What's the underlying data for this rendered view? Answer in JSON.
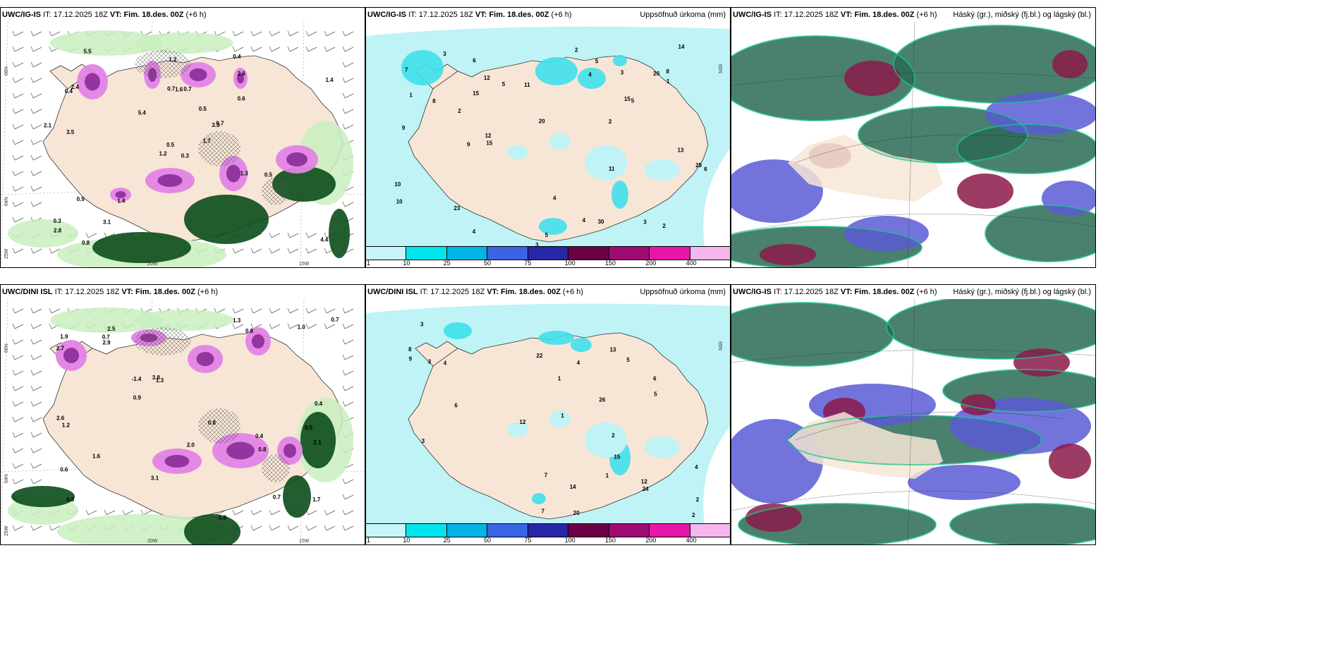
{
  "panels": [
    {
      "id": "p1",
      "model": "UWC/IG-IS",
      "it_label": "IT:",
      "it_value": "17.12.2025 18Z",
      "vt_label": "VT:",
      "vt_value": "Fim. 18.des. 00Z",
      "lead": "(+6 h)",
      "right_title": "",
      "axis_labels": [
        "66N",
        "64N",
        "25W",
        "20W",
        "15W"
      ],
      "value_labels": [
        "0.3",
        "0.4",
        "0.5",
        "0.3",
        "3.3",
        "1.4",
        "0.4",
        "0.7",
        "2.6",
        "1.7",
        "5.5",
        "4.4",
        "3.5",
        "1.4",
        "1.2",
        "0.6",
        "0.8",
        "0.7",
        "0.5",
        "0.9",
        "5.4",
        "2.8",
        "3.1",
        "1.6",
        "0.7",
        "0.5",
        "2.4",
        "1.3",
        "2.1",
        "1.3"
      ]
    },
    {
      "id": "p2",
      "model": "UWC/IG-IS",
      "it_label": "IT:",
      "it_value": "17.12.2025 18Z",
      "vt_label": "VT:",
      "vt_value": "Fim. 18.des. 00Z",
      "lead": "(+6 h)",
      "right_title": "Uppsöfnuð úrkoma (mm)",
      "axis_labels": [
        "65N"
      ],
      "value_labels": [
        "1",
        "15",
        "2",
        "5",
        "20",
        "3",
        "11",
        "15",
        "8",
        "6",
        "28",
        "12",
        "15",
        "23",
        "9",
        "4",
        "12",
        "11",
        "2",
        "4",
        "3",
        "13",
        "20",
        "4",
        "3",
        "2",
        "1",
        "5",
        "3",
        "9",
        "10",
        "30",
        "14",
        "8",
        "7",
        "6",
        "5",
        "4",
        "2",
        "10",
        "5"
      ],
      "colorbar": {
        "labels": [
          "1",
          "10",
          "25",
          "50",
          "75",
          "100",
          "150",
          "200",
          "400"
        ],
        "colors": [
          "#c8f5f8",
          "#00e5ee",
          "#00b5e6",
          "#3a64e6",
          "#2727a8",
          "#6b0047",
          "#a00a73",
          "#e617a8",
          "#f5b6ee"
        ]
      }
    },
    {
      "id": "p3",
      "model": "UWC/IG-IS",
      "it_label": "IT:",
      "it_value": "17.12.2025 18Z",
      "vt_label": "VT:",
      "vt_value": "Fim. 18.des. 00Z",
      "lead": "(+6 h)",
      "right_title": "Háský (gr.), miðský (fj.bl.) og lágský (bl.)"
    },
    {
      "id": "p4",
      "model": "UWC/DINI ISL",
      "it_label": "IT:",
      "it_value": "17.12.2025 18Z",
      "vt_label": "VT:",
      "vt_value": "Fim. 18.des. 00Z",
      "lead": "(+6 h)",
      "right_title": "",
      "axis_labels": [
        "66N",
        "64N",
        "25W",
        "20W",
        "15W"
      ],
      "value_labels": [
        "0.4",
        "0.5",
        "0.8",
        "2.5",
        "1.3",
        "0.7",
        "0.6",
        "0.8",
        "-1.4",
        "-1.6",
        "2.7",
        "2.6",
        "1.9",
        "1.7",
        "3.1",
        "0.4",
        "2.0",
        "0.8",
        "3.8",
        "1.6",
        "0.7",
        "1.0",
        "0.9",
        "2.1",
        "1.3",
        "0.7",
        "0.8",
        "1.2",
        "2.9"
      ]
    },
    {
      "id": "p5",
      "model": "UWC/DINI ISL",
      "it_label": "IT:",
      "it_value": "17.12.2025 18Z",
      "vt_label": "VT:",
      "vt_value": "Fim. 18.des. 00Z",
      "lead": "(+6 h)",
      "right_title": "Uppsöfnuð úrkoma (mm)",
      "axis_labels": [
        "65N"
      ],
      "value_labels": [
        "1",
        "24",
        "8",
        "6",
        "7",
        "22",
        "20",
        "13",
        "6",
        "3",
        "12",
        "4",
        "2",
        "3",
        "2",
        "5",
        "4",
        "1",
        "14",
        "15",
        "9",
        "7",
        "26",
        "12",
        "5",
        "4",
        "3",
        "2",
        "1"
      ],
      "colorbar": {
        "labels": [
          "1",
          "10",
          "25",
          "50",
          "75",
          "100",
          "150",
          "200",
          "400"
        ],
        "colors": [
          "#c8f5f8",
          "#00e5ee",
          "#00b5e6",
          "#3a64e6",
          "#2727a8",
          "#6b0047",
          "#a00a73",
          "#e617a8",
          "#f5b6ee"
        ]
      }
    },
    {
      "id": "p6",
      "model": "UWC/IG-IS",
      "it_label": "IT:",
      "it_value": "17.12.2025 18Z",
      "vt_label": "VT:",
      "vt_value": "Fim. 18.des. 00Z",
      "lead": "(+6 h)",
      "right_title": "Háský (gr.), miðský (fj.bl.) og lágský (bl.)"
    }
  ],
  "colors": {
    "land": "#f7e6d6",
    "precip_light_green": "#c9eec0",
    "precip_green": "#2e8b3a",
    "precip_dark_green": "#0b4d1a",
    "snow_pink": "#e383e6",
    "snow_purple": "#8a2c96",
    "accum_cyan": "#bff3f6",
    "cloud_high_green": "#2a6a55",
    "cloud_mid_blue": "#5b5bd6",
    "cloud_low_red": "#8b1a4a"
  }
}
